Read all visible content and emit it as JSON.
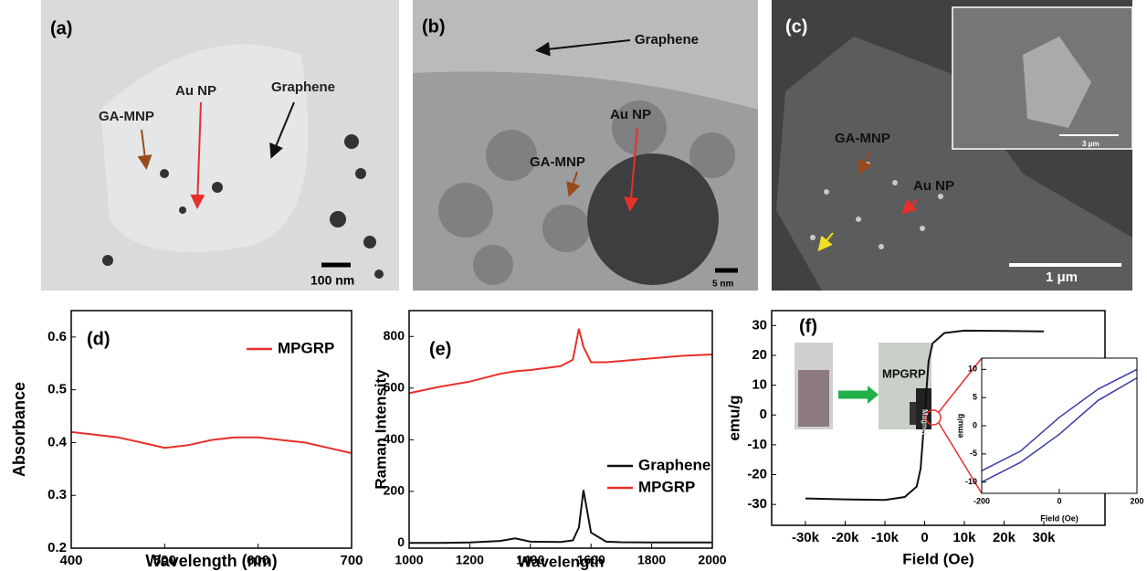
{
  "panels": [
    {
      "label": "(a)",
      "annotations": [
        "GA-MNP",
        "Au NP",
        "Graphene"
      ],
      "scale_bar": "100 nm"
    },
    {
      "label": "(b)",
      "annotations": [
        "Graphene",
        "GA-MNP",
        "Au NP"
      ],
      "scale_bar": "5 nm"
    },
    {
      "label": "(c)",
      "annotations": [
        "GA-MNP",
        "Au NP"
      ],
      "scale_bar": "1 μm",
      "inset_scale_bar": "3 μm"
    }
  ],
  "chart_data": [
    {
      "type": "line",
      "panel_label": "(d)",
      "x_label": "Wavelength (nm)",
      "y_label": "Absorbance",
      "x": [
        400,
        425,
        450,
        475,
        500,
        525,
        550,
        575,
        600,
        625,
        650,
        675,
        700
      ],
      "series": [
        {
          "name": "MPGRP",
          "color": "#e8302a",
          "values": [
            0.42,
            0.415,
            0.41,
            0.4,
            0.39,
            0.395,
            0.405,
            0.41,
            0.41,
            0.405,
            0.4,
            0.39,
            0.38
          ]
        }
      ],
      "xlim": [
        400,
        700
      ],
      "xticks": [
        400,
        500,
        600,
        700
      ],
      "ylim": [
        0.2,
        0.65
      ],
      "yticks": [
        0.2,
        0.3,
        0.4,
        0.5,
        0.6
      ],
      "legend": "upper right"
    },
    {
      "type": "line",
      "panel_label": "(e)",
      "x_label": "Wavelength",
      "y_label": "Raman Intensity",
      "x": [
        1000,
        1100,
        1200,
        1300,
        1350,
        1400,
        1500,
        1540,
        1560,
        1575,
        1600,
        1650,
        1700,
        1800,
        1900,
        2000
      ],
      "series": [
        {
          "name": "Graphene",
          "color": "#111111",
          "values": [
            0,
            0,
            2,
            8,
            18,
            5,
            4,
            10,
            60,
            205,
            40,
            5,
            3,
            2,
            2,
            2
          ]
        },
        {
          "name": "MPGRP",
          "color": "#e8302a",
          "values": [
            580,
            605,
            625,
            655,
            665,
            670,
            685,
            710,
            830,
            760,
            700,
            700,
            705,
            715,
            725,
            730
          ]
        }
      ],
      "xlim": [
        1000,
        2000
      ],
      "xticks": [
        1000,
        1200,
        1400,
        1600,
        1800,
        2000
      ],
      "ylim": [
        -20,
        900
      ],
      "yticks": [
        0,
        200,
        400,
        600,
        800
      ],
      "legend": "center right"
    },
    {
      "type": "line",
      "panel_label": "(f)",
      "x_label": "Field (Oe)",
      "y_label": "emu/g",
      "annotations": [
        "MPGRP",
        "Magnet"
      ],
      "x": [
        -30000,
        -20000,
        -10000,
        -5000,
        -2000,
        -1000,
        0,
        1000,
        2000,
        5000,
        10000,
        20000,
        30000
      ],
      "series": [
        {
          "color": "#111111",
          "values": [
            -28,
            -28.3,
            -28.5,
            -27.5,
            -24,
            -18,
            0,
            18,
            24,
            27.5,
            28.3,
            28.2,
            28
          ]
        }
      ],
      "xlim": [
        -38500,
        45400
      ],
      "xticks": [
        {
          "value": -30000,
          "label": "-30k"
        },
        {
          "value": -20000,
          "label": "-20k"
        },
        {
          "value": -10000,
          "label": "-10k"
        },
        0,
        {
          "value": 10000,
          "label": "10k"
        },
        {
          "value": 20000,
          "label": "20k"
        },
        {
          "value": 30000,
          "label": "30k"
        }
      ],
      "ylim": [
        -37,
        35
      ],
      "yticks": [
        -30,
        -20,
        -10,
        0,
        10,
        20,
        30
      ]
    },
    {
      "type": "line",
      "x_label": "Field (Oe)",
      "y_label": "emu/g",
      "x": [
        -200,
        -100,
        0,
        100,
        200
      ],
      "series": [
        {
          "color": "#3a3aa8",
          "values": [
            -8,
            -4.5,
            1.5,
            6.5,
            10
          ]
        },
        {
          "color": "#3a3aa8",
          "values": [
            -10,
            -6.5,
            -1.5,
            4.5,
            8.5
          ]
        }
      ],
      "xlim": [
        -200,
        200
      ],
      "xticks": [
        -200,
        0,
        200
      ],
      "ylim": [
        -12,
        12
      ],
      "yticks": [
        -10,
        -5,
        0,
        5,
        10
      ]
    }
  ]
}
